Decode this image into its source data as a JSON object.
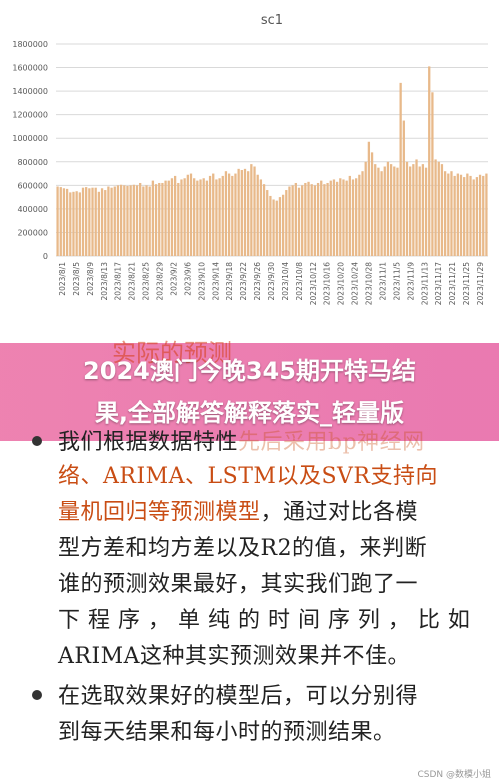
{
  "banner": {
    "line1": "2024澳门今晚345期开特马结",
    "line2": "果,全部解答解释落实_轻量版",
    "ghost_fragment": "实际的预测",
    "ghost_fragment2": "先后采用bp神经网"
  },
  "content": {
    "b1_l1_a": "我们根据数据特性",
    "b1_l1_b": "先后采用bp神经网",
    "b1_l2": "络、ARIMA、LSTM以及SVR支持向",
    "b1_l3_a": "量机回归等预测模型",
    "b1_l3_b": "，通过对比各模",
    "b1_l4": "型方差和均方差以及R2的值，来判断",
    "b1_l5": "谁的预测效果最好，其实我们跑了一",
    "b1_l6": "下 程 序 ， 单 纯 的 时 间 序 列 ， 比 如",
    "b1_l7": "ARIMA这种其实预测效果并不佳。",
    "b2_l1": "在选取效果好的模型后，可以分别得",
    "b2_l2": "到每天结果和每小时的预测结果。"
  },
  "watermark": "CSDN @数模小姐",
  "chart_data": {
    "type": "bar",
    "title": "sc1",
    "ylim": [
      0,
      1800000
    ],
    "yticks": [
      0,
      200000,
      400000,
      600000,
      800000,
      1000000,
      1200000,
      1400000,
      1600000,
      1800000
    ],
    "ytick_labels": [
      "0",
      "200000",
      "400000",
      "600000",
      "800000",
      "1000000",
      "1200000",
      "1400000",
      "1600000",
      "1800000"
    ],
    "xtick_labels": [
      "2023/8/1",
      "2023/8/5",
      "2023/8/9",
      "2023/8/13",
      "2023/8/17",
      "2023/8/21",
      "2023/8/25",
      "2023/8/29",
      "2023/9/2",
      "2023/9/6",
      "2023/9/10",
      "2023/9/14",
      "2023/9/18",
      "2023/9/22",
      "2023/9/26",
      "2023/9/30",
      "2023/10/4",
      "2023/10/8",
      "2023/10/12",
      "2023/10/16",
      "2023/10/20",
      "2023/10/24",
      "2023/10/28",
      "2023/11/1",
      "2023/11/5",
      "2023/11/9",
      "2023/11/13",
      "2023/11/17",
      "2023/11/21",
      "2023/11/25",
      "2023/11/29"
    ],
    "color": "#e8b98a",
    "values": [
      590000,
      585000,
      575000,
      570000,
      540000,
      545000,
      550000,
      540000,
      580000,
      585000,
      575000,
      580000,
      580000,
      545000,
      575000,
      560000,
      590000,
      580000,
      590000,
      600000,
      605000,
      600000,
      595000,
      600000,
      605000,
      600000,
      620000,
      590000,
      600000,
      590000,
      640000,
      610000,
      620000,
      620000,
      640000,
      640000,
      660000,
      680000,
      620000,
      650000,
      660000,
      690000,
      700000,
      660000,
      640000,
      650000,
      660000,
      640000,
      680000,
      700000,
      650000,
      660000,
      680000,
      720000,
      700000,
      680000,
      700000,
      740000,
      730000,
      740000,
      720000,
      780000,
      760000,
      690000,
      650000,
      610000,
      560000,
      510000,
      480000,
      470000,
      500000,
      520000,
      560000,
      590000,
      600000,
      620000,
      580000,
      600000,
      620000,
      630000,
      610000,
      600000,
      620000,
      640000,
      610000,
      620000,
      640000,
      650000,
      630000,
      660000,
      650000,
      640000,
      680000,
      650000,
      660000,
      690000,
      720000,
      800000,
      970000,
      880000,
      780000,
      750000,
      720000,
      760000,
      800000,
      780000,
      760000,
      750000,
      1470000,
      1150000,
      800000,
      760000,
      780000,
      820000,
      760000,
      780000,
      750000,
      1610000,
      1390000,
      820000,
      800000,
      780000,
      720000,
      700000,
      720000,
      680000,
      700000,
      690000,
      670000,
      700000,
      680000,
      650000,
      670000,
      690000,
      680000,
      700000
    ]
  }
}
